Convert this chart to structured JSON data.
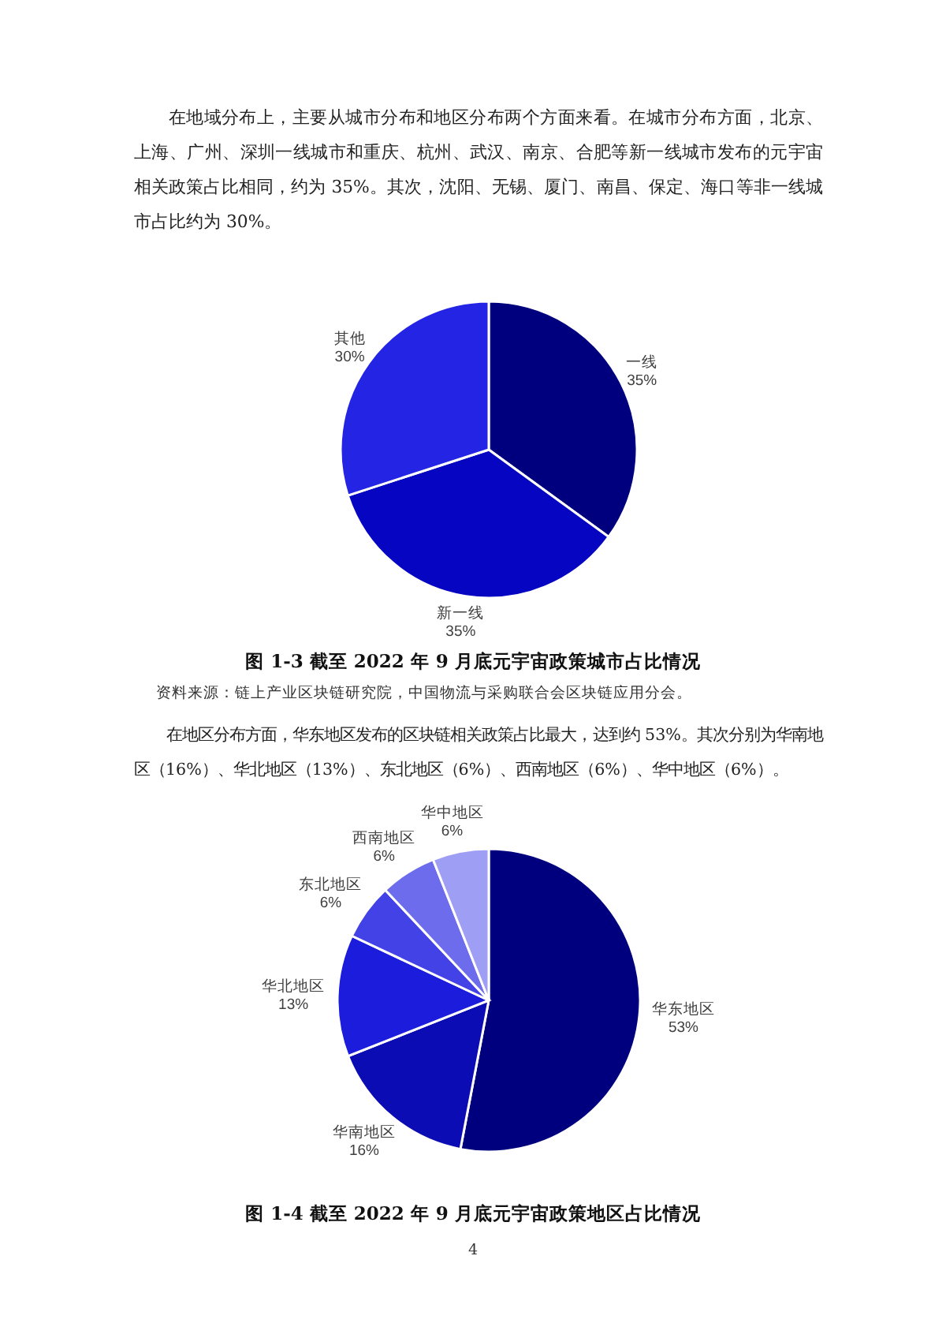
{
  "chart_data": [
    {
      "type": "pie",
      "title": "图 1-3 截至 2022 年 9 月底元宇宙政策城市占比情况",
      "categories": [
        "一线",
        "新一线",
        "其他"
      ],
      "values": [
        35,
        35,
        30
      ],
      "colors": [
        "#00007f",
        "#0606c2",
        "#2424e4"
      ],
      "value_labels": [
        "35%",
        "35%",
        "30%"
      ],
      "annotations": [
        "在地域分布上，主要从城市分布和地区分布两个方面来看。在城市分布方面，北京、上海、广州、深圳一线城市和重庆、杭州、武汉、南京、合肥等新一线城市发布的元宇宙相关政策占比相同，约为 35%。其次，沈阳、无锡、厦门、南昌、保定、海口等非一线城市占比约为 30%。",
        "资料来源：链上产业区块链研究院，中国物流与采购联合会区块链应用分会。"
      ]
    },
    {
      "type": "pie",
      "title": "图 1-4 截至 2022 年 9 月底元宇宙政策地区占比情况",
      "categories": [
        "华东地区",
        "华南地区",
        "华北地区",
        "东北地区",
        "西南地区",
        "华中地区"
      ],
      "values": [
        53,
        16,
        13,
        6,
        6,
        6
      ],
      "colors": [
        "#00007f",
        "#0c0cb4",
        "#1c1cdc",
        "#4242e6",
        "#6c6cec",
        "#9e9ef4"
      ],
      "value_labels": [
        "53%",
        "16%",
        "13%",
        "6%",
        "6%",
        "6%"
      ],
      "annotations": [
        "在地区分布方面，华东地区发布的区块链相关政策占比最大，达到约 53%。其次分别为华南地区（16%）、华北地区（13%）、东北地区（6%）、西南地区（6%）、华中地区（6%）。",
        "4"
      ]
    }
  ]
}
